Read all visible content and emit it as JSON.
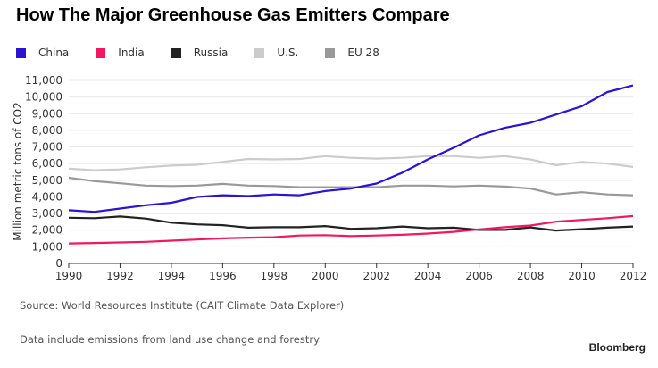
{
  "chart_data": {
    "type": "line",
    "title": "How The Major Greenhouse Gas Emitters Compare",
    "ylabel": "Million metric tons of CO2",
    "xlabel": "",
    "ylim": [
      0,
      11000
    ],
    "xlim": [
      1990,
      2012
    ],
    "yticks": [
      "0",
      "1,000",
      "2,000",
      "3,000",
      "4,000",
      "5,000",
      "6,000",
      "7,000",
      "8,000",
      "9,000",
      "10,000",
      "11,000"
    ],
    "xticks": [
      "1990",
      "1992",
      "1994",
      "1996",
      "1998",
      "2000",
      "2002",
      "2004",
      "2006",
      "2008",
      "2010",
      "2012"
    ],
    "grid": true,
    "legend_placement": "top",
    "x": [
      1990,
      1991,
      1992,
      1993,
      1994,
      1995,
      1996,
      1997,
      1998,
      1999,
      2000,
      2001,
      2002,
      2003,
      2004,
      2005,
      2006,
      2007,
      2008,
      2009,
      2010,
      2011,
      2012
    ],
    "series": [
      {
        "name": "China",
        "color": "#2a14cf",
        "values": [
          3200,
          3100,
          3300,
          3500,
          3650,
          4000,
          4100,
          4050,
          4150,
          4100,
          4350,
          4500,
          4800,
          5450,
          6250,
          6950,
          7700,
          8150,
          8450,
          8950,
          9450,
          10300,
          10700
        ]
      },
      {
        "name": "India",
        "color": "#f0195f",
        "values": [
          1200,
          1230,
          1260,
          1300,
          1370,
          1440,
          1510,
          1550,
          1580,
          1680,
          1700,
          1650,
          1680,
          1720,
          1800,
          1900,
          2050,
          2180,
          2280,
          2510,
          2620,
          2720,
          2850
        ]
      },
      {
        "name": "Russia",
        "color": "#222222",
        "values": [
          2750,
          2720,
          2820,
          2700,
          2450,
          2350,
          2300,
          2150,
          2180,
          2180,
          2250,
          2080,
          2120,
          2220,
          2120,
          2150,
          2020,
          2020,
          2170,
          1980,
          2060,
          2150,
          2220
        ]
      },
      {
        "name": "U.S.",
        "color": "#cccccc",
        "values": [
          5700,
          5600,
          5650,
          5780,
          5880,
          5930,
          6100,
          6280,
          6250,
          6280,
          6450,
          6350,
          6300,
          6350,
          6450,
          6450,
          6350,
          6450,
          6250,
          5900,
          6100,
          6000,
          5800
        ]
      },
      {
        "name": "EU 28",
        "color": "#999999",
        "values": [
          5150,
          4950,
          4820,
          4680,
          4650,
          4680,
          4780,
          4680,
          4650,
          4580,
          4580,
          4580,
          4580,
          4680,
          4680,
          4630,
          4680,
          4620,
          4500,
          4150,
          4280,
          4150,
          4100
        ]
      }
    ]
  },
  "source": "Source: World Resources Institute (CAIT Climate Data Explorer)",
  "footnote": "Data include emissions from land use change and forestry",
  "brand": "Bloomberg"
}
